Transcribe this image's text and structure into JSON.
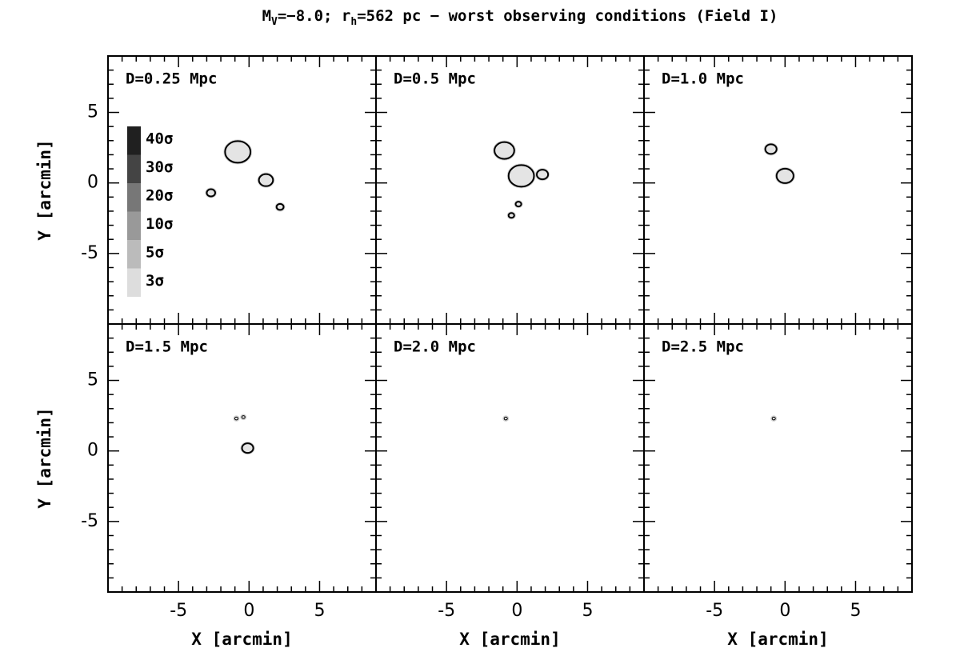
{
  "title": [
    {
      "text": "M"
    },
    {
      "text": "V",
      "sub": true
    },
    {
      "text": "=−8.0; r"
    },
    {
      "text": "h",
      "sub": true
    },
    {
      "text": "=562 pc − worst observing conditions (Field I)"
    }
  ],
  "chart_data": [
    {
      "type": "contour",
      "title": "D=0.25 Mpc",
      "ylabel": "Y [arcmin]",
      "xlim": [
        -10,
        9
      ],
      "ylim": [
        -10,
        9
      ],
      "xticks": [
        -5,
        0,
        5
      ],
      "yticks": [
        -5,
        0,
        5
      ],
      "show_xticklabels": false,
      "xminorticks": [
        -9,
        -8,
        -7,
        -6,
        -4,
        -3,
        -2,
        -1,
        1,
        2,
        3,
        4,
        6,
        7,
        8
      ],
      "yminorticks": [
        -9,
        -8,
        -7,
        -6,
        -4,
        -3,
        -2,
        -1,
        1,
        2,
        3,
        4,
        6,
        7,
        8
      ],
      "levels": [
        {
          "value": 40,
          "label": "40σ",
          "color": "#202020"
        },
        {
          "value": 30,
          "label": "30σ",
          "color": "#444444"
        },
        {
          "value": 20,
          "label": "20σ",
          "color": "#777777"
        },
        {
          "value": 10,
          "label": "10σ",
          "color": "#999999"
        },
        {
          "value": 5,
          "label": "5σ",
          "color": "#bbbbbb"
        },
        {
          "value": 3,
          "label": "3σ",
          "color": "#dddddd"
        }
      ],
      "blobs": [
        {
          "x": -0.8,
          "y": 2.2,
          "r": 0.9
        },
        {
          "x": 1.2,
          "y": 0.2,
          "r": 0.5
        },
        {
          "x": -2.7,
          "y": -0.7,
          "r": 0.3
        },
        {
          "x": 2.2,
          "y": -1.7,
          "r": 0.25
        }
      ]
    },
    {
      "type": "contour",
      "title": "D=0.5 Mpc",
      "xlim": [
        -10,
        9
      ],
      "ylim": [
        -10,
        9
      ],
      "xticks": [
        -5,
        0,
        5
      ],
      "yticks": [
        -5,
        0,
        5
      ],
      "show_xticklabels": false,
      "show_yticklabels": false,
      "xminorticks": [
        -9,
        -8,
        -7,
        -6,
        -4,
        -3,
        -2,
        -1,
        1,
        2,
        3,
        4,
        6,
        7,
        8
      ],
      "yminorticks": [
        -9,
        -8,
        -7,
        -6,
        -4,
        -3,
        -2,
        -1,
        1,
        2,
        3,
        4,
        6,
        7,
        8
      ],
      "blobs": [
        {
          "x": -0.9,
          "y": 2.3,
          "r": 0.7
        },
        {
          "x": 0.3,
          "y": 0.5,
          "r": 0.9
        },
        {
          "x": 1.8,
          "y": 0.6,
          "r": 0.4
        },
        {
          "x": 0.1,
          "y": -1.5,
          "r": 0.2
        },
        {
          "x": -0.4,
          "y": -2.3,
          "r": 0.2
        }
      ]
    },
    {
      "type": "contour",
      "title": "D=1.0 Mpc",
      "xlim": [
        -10,
        9
      ],
      "ylim": [
        -10,
        9
      ],
      "xticks": [
        -5,
        0,
        5
      ],
      "yticks": [
        -5,
        0,
        5
      ],
      "show_xticklabels": false,
      "show_yticklabels": false,
      "xminorticks": [
        -9,
        -8,
        -7,
        -6,
        -4,
        -3,
        -2,
        -1,
        1,
        2,
        3,
        4,
        6,
        7,
        8
      ],
      "yminorticks": [
        -9,
        -8,
        -7,
        -6,
        -4,
        -3,
        -2,
        -1,
        1,
        2,
        3,
        4,
        6,
        7,
        8
      ],
      "blobs": [
        {
          "x": -1.0,
          "y": 2.4,
          "r": 0.4
        },
        {
          "x": 0.0,
          "y": 0.5,
          "r": 0.6
        }
      ]
    },
    {
      "type": "contour",
      "title": "D=1.5 Mpc",
      "xlabel": "X [arcmin]",
      "ylabel": "Y [arcmin]",
      "xlim": [
        -10,
        9
      ],
      "ylim": [
        -10,
        9
      ],
      "xticks": [
        -5,
        0,
        5
      ],
      "yticks": [
        -5,
        0,
        5
      ],
      "xminorticks": [
        -9,
        -8,
        -7,
        -6,
        -4,
        -3,
        -2,
        -1,
        1,
        2,
        3,
        4,
        6,
        7,
        8
      ],
      "yminorticks": [
        -9,
        -8,
        -7,
        -6,
        -4,
        -3,
        -2,
        -1,
        1,
        2,
        3,
        4,
        6,
        7,
        8
      ],
      "blobs": [
        {
          "x": -0.1,
          "y": 0.2,
          "r": 0.4
        },
        {
          "x": -0.9,
          "y": 2.3,
          "r": 0.1
        },
        {
          "x": -0.4,
          "y": 2.4,
          "r": 0.1
        }
      ]
    },
    {
      "type": "contour",
      "title": "D=2.0 Mpc",
      "xlabel": "X [arcmin]",
      "xlim": [
        -10,
        9
      ],
      "ylim": [
        -10,
        9
      ],
      "xticks": [
        -5,
        0,
        5
      ],
      "yticks": [
        -5,
        0,
        5
      ],
      "show_yticklabels": false,
      "xminorticks": [
        -9,
        -8,
        -7,
        -6,
        -4,
        -3,
        -2,
        -1,
        1,
        2,
        3,
        4,
        6,
        7,
        8
      ],
      "yminorticks": [
        -9,
        -8,
        -7,
        -6,
        -4,
        -3,
        -2,
        -1,
        1,
        2,
        3,
        4,
        6,
        7,
        8
      ],
      "blobs": [
        {
          "x": -0.8,
          "y": 2.3,
          "r": 0.1
        }
      ]
    },
    {
      "type": "contour",
      "title": "D=2.5 Mpc",
      "xlabel": "X [arcmin]",
      "xlim": [
        -10,
        9
      ],
      "ylim": [
        -10,
        9
      ],
      "xticks": [
        -5,
        0,
        5
      ],
      "yticks": [
        -5,
        0,
        5
      ],
      "show_yticklabels": false,
      "xminorticks": [
        -9,
        -8,
        -7,
        -6,
        -4,
        -3,
        -2,
        -1,
        1,
        2,
        3,
        4,
        6,
        7,
        8
      ],
      "yminorticks": [
        -9,
        -8,
        -7,
        -6,
        -4,
        -3,
        -2,
        -1,
        1,
        2,
        3,
        4,
        6,
        7,
        8
      ],
      "blobs": [
        {
          "x": -0.8,
          "y": 2.3,
          "r": 0.1
        }
      ]
    }
  ]
}
